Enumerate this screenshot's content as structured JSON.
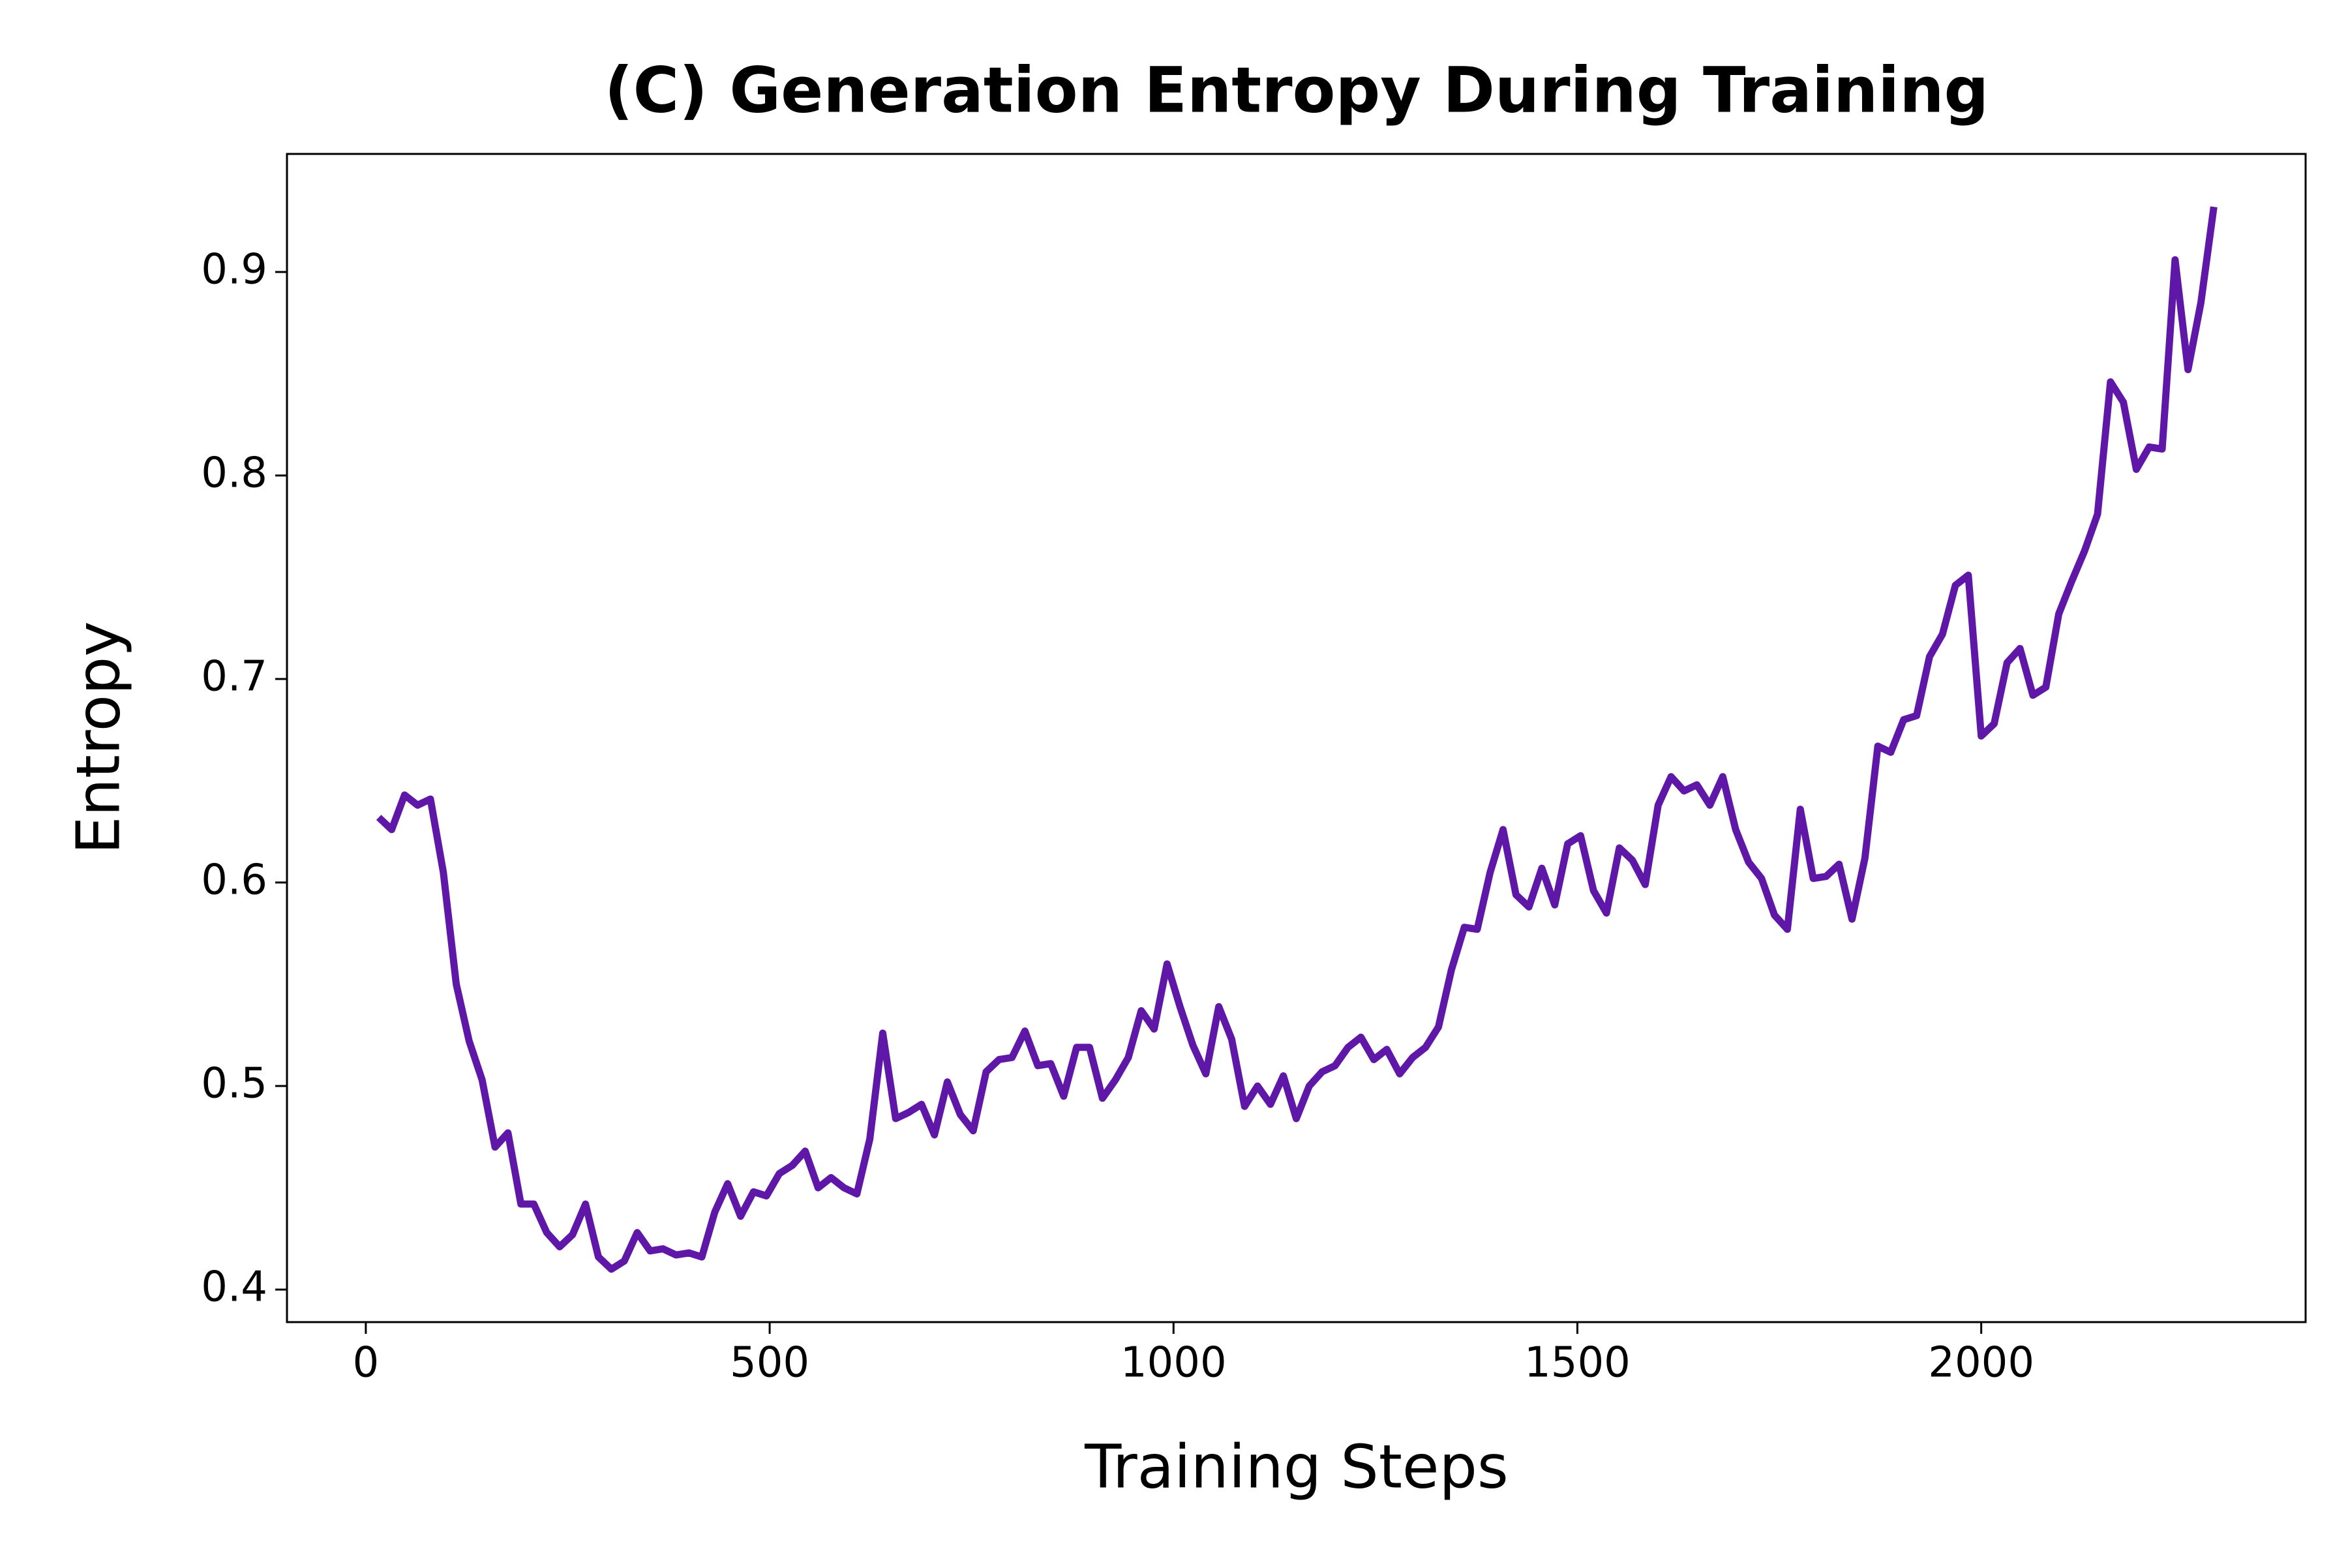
{
  "chart_data": {
    "type": "line",
    "title": "(C) Generation Entropy During Training",
    "x_label": "Training Steps",
    "y_label": "Entropy",
    "x": [
      16,
      32,
      48,
      64,
      80,
      96,
      112,
      128,
      144,
      160,
      176,
      192,
      208,
      224,
      240,
      256,
      272,
      288,
      304,
      320,
      336,
      352,
      368,
      384,
      400,
      416,
      432,
      448,
      464,
      480,
      496,
      512,
      528,
      544,
      560,
      576,
      592,
      608,
      624,
      640,
      656,
      672,
      688,
      704,
      720,
      736,
      752,
      768,
      784,
      800,
      816,
      832,
      848,
      864,
      880,
      896,
      912,
      928,
      944,
      960,
      976,
      992,
      1008,
      1024,
      1040,
      1056,
      1072,
      1088,
      1104,
      1120,
      1136,
      1152,
      1168,
      1184,
      1200,
      1216,
      1232,
      1248,
      1264,
      1280,
      1296,
      1312,
      1328,
      1344,
      1360,
      1376,
      1392,
      1408,
      1424,
      1440,
      1456,
      1472,
      1488,
      1504,
      1520,
      1536,
      1552,
      1568,
      1584,
      1600,
      1616,
      1632,
      1648,
      1664,
      1680,
      1696,
      1712,
      1728,
      1744,
      1760,
      1776,
      1792,
      1808,
      1824,
      1840,
      1856,
      1872,
      1888,
      1904,
      1920,
      1936,
      1952,
      1968,
      1984,
      2000,
      2016,
      2032,
      2048,
      2064,
      2080,
      2096,
      2112,
      2128,
      2144,
      2160,
      2176,
      2192,
      2208,
      2224,
      2240,
      2256,
      2272,
      2288
    ],
    "series": [
      {
        "name": "Entropy",
        "color": "#5f17a8",
        "values": [
          0.632,
          0.626,
          0.643,
          0.638,
          0.641,
          0.605,
          0.55,
          0.522,
          0.503,
          0.47,
          0.477,
          0.442,
          0.442,
          0.428,
          0.421,
          0.427,
          0.442,
          0.416,
          0.41,
          0.414,
          0.428,
          0.419,
          0.42,
          0.417,
          0.418,
          0.416,
          0.438,
          0.452,
          0.436,
          0.448,
          0.446,
          0.457,
          0.461,
          0.468,
          0.45,
          0.455,
          0.45,
          0.447,
          0.474,
          0.526,
          0.484,
          0.487,
          0.491,
          0.476,
          0.502,
          0.486,
          0.478,
          0.507,
          0.513,
          0.514,
          0.527,
          0.51,
          0.511,
          0.495,
          0.519,
          0.519,
          0.494,
          0.503,
          0.514,
          0.537,
          0.528,
          0.56,
          0.539,
          0.52,
          0.506,
          0.539,
          0.523,
          0.49,
          0.5,
          0.491,
          0.505,
          0.484,
          0.5,
          0.507,
          0.51,
          0.519,
          0.524,
          0.513,
          0.518,
          0.506,
          0.514,
          0.519,
          0.529,
          0.557,
          0.578,
          0.577,
          0.605,
          0.626,
          0.594,
          0.588,
          0.607,
          0.589,
          0.619,
          0.623,
          0.596,
          0.585,
          0.617,
          0.611,
          0.599,
          0.638,
          0.652,
          0.645,
          0.648,
          0.638,
          0.652,
          0.626,
          0.61,
          0.602,
          0.584,
          0.577,
          0.636,
          0.602,
          0.603,
          0.609,
          0.582,
          0.612,
          0.667,
          0.664,
          0.68,
          0.682,
          0.711,
          0.722,
          0.746,
          0.751,
          0.672,
          0.678,
          0.708,
          0.715,
          0.692,
          0.696,
          0.732,
          0.748,
          0.763,
          0.781,
          0.846,
          0.836,
          0.803,
          0.814,
          0.813,
          0.906,
          0.852,
          0.885,
          0.932
        ]
      }
    ],
    "xlim": [
      -97.6,
      2401.6
    ],
    "ylim": [
      0.384,
      0.958
    ],
    "xticks": [
      0,
      500,
      1000,
      1500,
      2000
    ],
    "yticks": [
      0.4,
      0.5,
      0.6,
      0.7,
      0.8,
      0.9
    ]
  }
}
